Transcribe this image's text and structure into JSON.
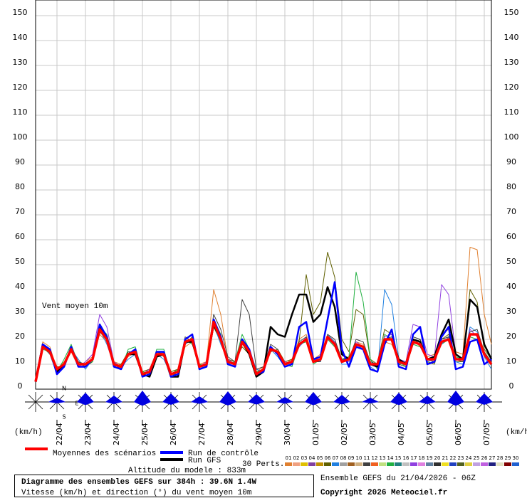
{
  "chart_data": {
    "type": "line",
    "annotation": "Vent moyen 10m",
    "y_unit_left": "(km/h)",
    "y_unit_right": "(km/h)",
    "compass": {
      "north": "N",
      "south": "S",
      "east": "E"
    },
    "perturbations_label": "30 Perts.",
    "altitude": "Altitude du modele : 833m",
    "title": "Diagramme des ensembles GEFS sur 384h : 39.6N 1.4W",
    "subtitle": "Vitesse (km/h) et direction (°) du vent moyen 10m",
    "run_info": "Ensemble GEFS du 21/04/2026 - 06Z",
    "copyright": "Copyright 2026 Meteociel.fr",
    "grid": true,
    "xlim": [
      0,
      384
    ],
    "xticks": [
      {
        "value": 18,
        "label": "22/04"
      },
      {
        "value": 42,
        "label": "23/04"
      },
      {
        "value": 66,
        "label": "24/04"
      },
      {
        "value": 90,
        "label": "25/04"
      },
      {
        "value": 114,
        "label": "26/04"
      },
      {
        "value": 138,
        "label": "27/04"
      },
      {
        "value": 162,
        "label": "28/04"
      },
      {
        "value": 186,
        "label": "29/04"
      },
      {
        "value": 210,
        "label": "30/04"
      },
      {
        "value": 234,
        "label": "01/05"
      },
      {
        "value": 258,
        "label": "02/05"
      },
      {
        "value": 282,
        "label": "03/05"
      },
      {
        "value": 306,
        "label": "04/05"
      },
      {
        "value": 330,
        "label": "05/05"
      },
      {
        "value": 354,
        "label": "06/05"
      },
      {
        "value": 378,
        "label": "07/05"
      }
    ],
    "ylim": [
      0,
      150
    ],
    "yticks": [
      0,
      10,
      20,
      30,
      40,
      50,
      60,
      70,
      80,
      90,
      100,
      110,
      120,
      130,
      140,
      150
    ],
    "x": [
      0,
      6,
      12,
      18,
      24,
      30,
      36,
      42,
      48,
      54,
      60,
      66,
      72,
      78,
      84,
      90,
      96,
      102,
      108,
      114,
      120,
      126,
      132,
      138,
      144,
      150,
      156,
      162,
      168,
      174,
      180,
      186,
      192,
      198,
      204,
      210,
      216,
      222,
      228,
      234,
      240,
      246,
      252,
      258,
      264,
      270,
      276,
      282,
      288,
      294,
      300,
      306,
      312,
      318,
      324,
      330,
      336,
      342,
      348,
      354,
      360,
      366,
      372,
      378,
      384
    ],
    "series": [
      {
        "name": "01",
        "color": "#e08030",
        "line_width": 1,
        "values": [
          3,
          19,
          17,
          8,
          11,
          15,
          9,
          11,
          13,
          22,
          19,
          11,
          10,
          13,
          15,
          7,
          8,
          15,
          13,
          7,
          8,
          17,
          19,
          10,
          11,
          40,
          30,
          12,
          10,
          18,
          15,
          7,
          9,
          17,
          15,
          10,
          12,
          20,
          22,
          12,
          14,
          22,
          20,
          12,
          13,
          19,
          18,
          11,
          10,
          19,
          18,
          12,
          10,
          20,
          17,
          13,
          14,
          22,
          24,
          15,
          14,
          57,
          56,
          30,
          18
        ]
      },
      {
        "name": "06",
        "color": "#606000",
        "line_width": 1,
        "values": [
          3,
          17,
          14,
          9,
          9,
          17,
          11,
          9,
          11,
          23,
          20,
          9,
          10,
          15,
          14,
          7,
          8,
          13,
          15,
          7,
          8,
          18,
          21,
          10,
          9,
          25,
          19,
          12,
          11,
          17,
          14,
          7,
          8,
          15,
          16,
          11,
          12,
          19,
          46,
          30,
          35,
          55,
          45,
          20,
          15,
          32,
          30,
          12,
          10,
          24,
          22,
          10,
          9,
          18,
          20,
          11,
          10,
          20,
          22,
          11,
          11,
          40,
          35,
          16,
          12
        ]
      },
      {
        "name": "14",
        "color": "#20b040",
        "line_width": 1,
        "values": [
          3,
          16,
          15,
          7,
          12,
          18,
          10,
          10,
          11,
          25,
          22,
          11,
          8,
          16,
          17,
          7,
          6,
          16,
          16,
          6,
          8,
          20,
          18,
          10,
          9,
          28,
          22,
          10,
          11,
          22,
          16,
          7,
          8,
          17,
          14,
          10,
          9,
          18,
          19,
          10,
          12,
          20,
          17,
          12,
          13,
          47,
          35,
          12,
          8,
          22,
          20,
          11,
          9,
          18,
          17,
          12,
          12,
          18,
          20,
          13,
          12,
          21,
          20,
          14,
          10
        ]
      },
      {
        "name": "07",
        "color": "#2080e0",
        "line_width": 1,
        "values": [
          3,
          18,
          14,
          6,
          9,
          16,
          12,
          8,
          12,
          24,
          18,
          10,
          9,
          12,
          14,
          6,
          7,
          14,
          12,
          6,
          6,
          18,
          20,
          8,
          10,
          26,
          18,
          12,
          9,
          20,
          16,
          8,
          7,
          16,
          13,
          9,
          11,
          17,
          20,
          12,
          11,
          22,
          19,
          10,
          10,
          18,
          16,
          9,
          7,
          40,
          34,
          12,
          11,
          20,
          19,
          11,
          12,
          18,
          21,
          11,
          10,
          25,
          23,
          13,
          8
        ]
      },
      {
        "name": "17",
        "color": "#9040e0",
        "line_width": 1,
        "values": [
          3,
          17,
          16,
          7,
          10,
          16,
          9,
          11,
          14,
          30,
          25,
          11,
          9,
          14,
          16,
          6,
          8,
          14,
          15,
          6,
          7,
          19,
          20,
          9,
          11,
          27,
          21,
          12,
          10,
          18,
          16,
          6,
          8,
          16,
          15,
          11,
          10,
          17,
          21,
          12,
          12,
          20,
          19,
          12,
          11,
          19,
          17,
          10,
          9,
          21,
          22,
          12,
          11,
          26,
          25,
          14,
          13,
          42,
          38,
          14,
          12,
          24,
          21,
          13,
          11
        ]
      },
      {
        "name": "11",
        "color": "#404040",
        "line_width": 1,
        "values": [
          3,
          18,
          15,
          8,
          10,
          17,
          11,
          10,
          12,
          23,
          20,
          10,
          8,
          15,
          15,
          6,
          7,
          15,
          14,
          5,
          7,
          21,
          19,
          9,
          10,
          30,
          24,
          13,
          11,
          36,
          30,
          8,
          9,
          18,
          16,
          9,
          10,
          19,
          21,
          11,
          11,
          22,
          20,
          12,
          12,
          20,
          19,
          11,
          10,
          20,
          21,
          10,
          11,
          21,
          20,
          12,
          11,
          20,
          21,
          12,
          11,
          23,
          24,
          15,
          11
        ]
      },
      {
        "name": "Run GFS",
        "color": "#000000",
        "line_width": 2.5,
        "values": [
          3,
          18,
          15,
          7,
          10,
          16,
          10,
          10,
          12,
          25,
          21,
          10,
          9,
          14,
          14,
          6,
          5,
          13,
          14,
          5,
          5,
          19,
          19,
          9,
          10,
          26,
          20,
          11,
          10,
          19,
          14,
          5,
          7,
          25,
          22,
          21,
          30,
          38,
          38,
          27,
          30,
          41,
          33,
          14,
          12,
          18,
          17,
          10,
          9,
          20,
          20,
          12,
          10,
          20,
          19,
          12,
          13,
          22,
          28,
          14,
          12,
          36,
          33,
          18,
          12
        ]
      },
      {
        "name": "Run de contrôle",
        "color": "#0000ff",
        "line_width": 2.5,
        "values": [
          3,
          18,
          16,
          6,
          9,
          17,
          9,
          9,
          12,
          26,
          21,
          9,
          8,
          14,
          16,
          5,
          6,
          15,
          15,
          5,
          6,
          20,
          22,
          8,
          9,
          28,
          21,
          10,
          9,
          20,
          16,
          6,
          7,
          17,
          14,
          9,
          10,
          25,
          27,
          12,
          13,
          28,
          43,
          16,
          9,
          17,
          16,
          8,
          7,
          18,
          24,
          9,
          8,
          22,
          25,
          10,
          11,
          21,
          25,
          8,
          9,
          19,
          20,
          10,
          12
        ]
      },
      {
        "name": "Moyennes des scénarios",
        "color": "#ff0000",
        "line_width": 3.5,
        "values": [
          3,
          17,
          15,
          8,
          10,
          16,
          10,
          10,
          12,
          24,
          20,
          10,
          9,
          14,
          15,
          6,
          7,
          14,
          14,
          6,
          7,
          19,
          20,
          9,
          10,
          27,
          20,
          11,
          10,
          19,
          15,
          6,
          8,
          16,
          15,
          10,
          11,
          18,
          20,
          11,
          12,
          21,
          18,
          11,
          12,
          18,
          17,
          10,
          10,
          20,
          20,
          11,
          10,
          19,
          18,
          12,
          12,
          19,
          20,
          12,
          12,
          22,
          22,
          14,
          10
        ]
      }
    ],
    "perturbation_keys": [
      {
        "name": "01",
        "color": "#e08030"
      },
      {
        "name": "02",
        "color": "#f0a080"
      },
      {
        "name": "03",
        "color": "#e0c000"
      },
      {
        "name": "04",
        "color": "#8040a0"
      },
      {
        "name": "05",
        "color": "#c09000"
      },
      {
        "name": "06",
        "color": "#606000"
      },
      {
        "name": "07",
        "color": "#2080e0"
      },
      {
        "name": "08",
        "color": "#a0a0a0"
      },
      {
        "name": "09",
        "color": "#a06020"
      },
      {
        "name": "10",
        "color": "#d0b080"
      },
      {
        "name": "11",
        "color": "#404040"
      },
      {
        "name": "12",
        "color": "#f06020"
      },
      {
        "name": "13",
        "color": "#c0e080"
      },
      {
        "name": "14",
        "color": "#20b040"
      },
      {
        "name": "15",
        "color": "#208080"
      },
      {
        "name": "16",
        "color": "#c0c0c0"
      },
      {
        "name": "17",
        "color": "#9040e0"
      },
      {
        "name": "18",
        "color": "#e080e0"
      },
      {
        "name": "19",
        "color": "#6080a0"
      },
      {
        "name": "20",
        "color": "#303030"
      },
      {
        "name": "21",
        "color": "#f0e020"
      },
      {
        "name": "22",
        "color": "#2040c0"
      },
      {
        "name": "23",
        "color": "#506020"
      },
      {
        "name": "24",
        "color": "#e0d040"
      },
      {
        "name": "25",
        "color": "#c0a0e0"
      },
      {
        "name": "26",
        "color": "#c060e0"
      },
      {
        "name": "27",
        "color": "#202080"
      },
      {
        "name": "28",
        "color": "#e0e0c0"
      },
      {
        "name": "29",
        "color": "#800000"
      },
      {
        "name": "30",
        "color": "#2060d0"
      }
    ]
  }
}
